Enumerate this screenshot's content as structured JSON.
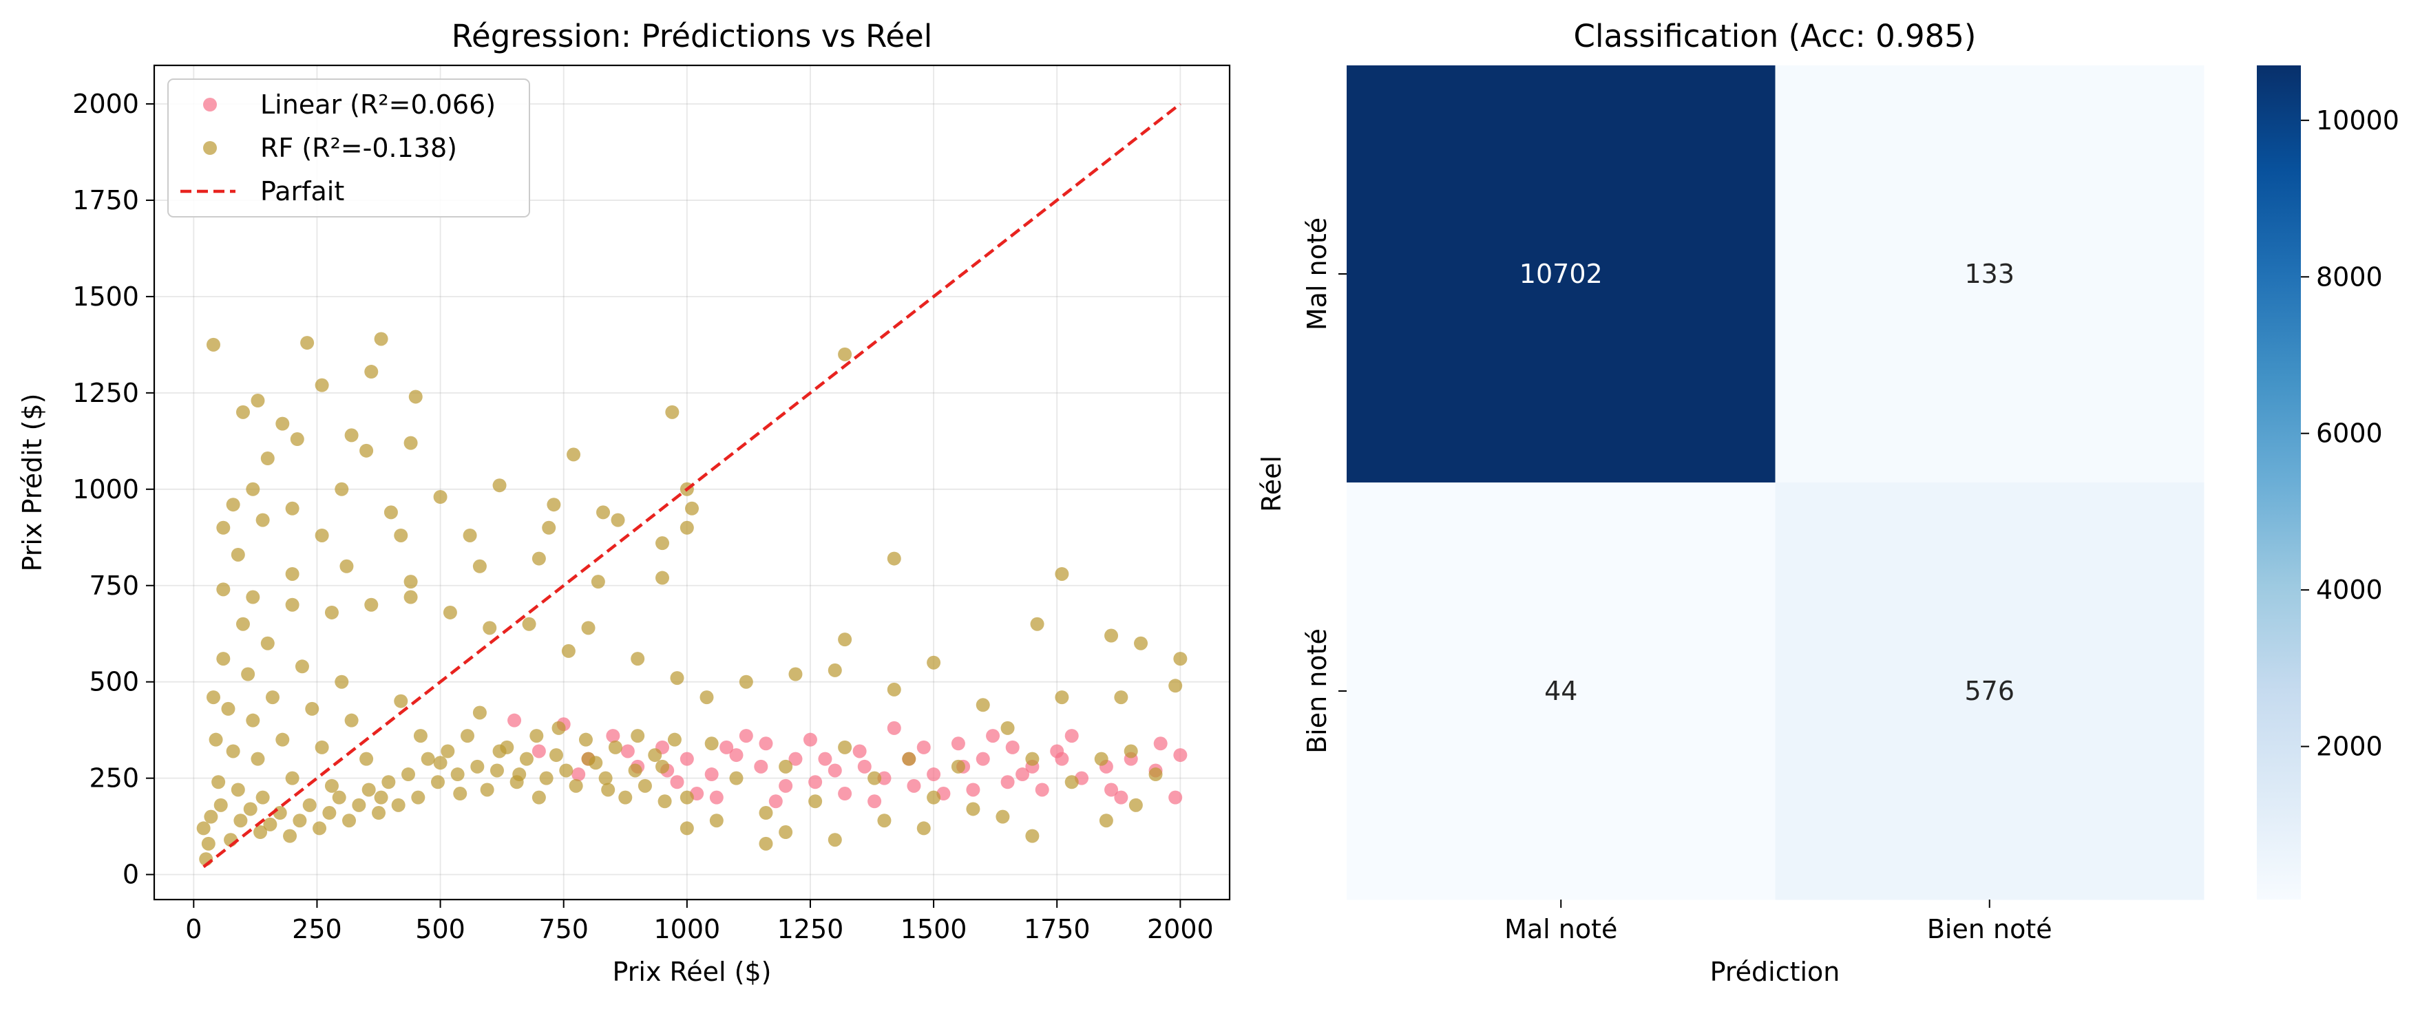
{
  "chart_data": [
    {
      "type": "scatter",
      "title": "Régression: Prédictions vs Réel",
      "xlabel": "Prix Réel ($)",
      "ylabel": "Prix Prédit ($)",
      "xlim": [
        -80,
        2100
      ],
      "ylim": [
        -65,
        2100
      ],
      "xticks": [
        0,
        250,
        500,
        750,
        1000,
        1250,
        1500,
        1750,
        2000
      ],
      "yticks": [
        0,
        250,
        500,
        750,
        1000,
        1250,
        1500,
        1750,
        2000
      ],
      "grid": true,
      "legend_position": "top-left",
      "series": [
        {
          "name": "Linear (R²=0.066)",
          "kind": "scatter",
          "color": "#f77189",
          "points": [
            [
              1850,
              280
            ],
            [
              1900,
              300
            ],
            [
              1950,
              270
            ],
            [
              2000,
              310
            ],
            [
              1990,
              200
            ],
            [
              1800,
              250
            ],
            [
              1750,
              320
            ],
            [
              1700,
              280
            ],
            [
              1650,
              240
            ],
            [
              1600,
              300
            ],
            [
              1550,
              340
            ],
            [
              1500,
              260
            ],
            [
              1450,
              300
            ],
            [
              1400,
              250
            ],
            [
              1350,
              320
            ],
            [
              1300,
              270
            ],
            [
              1250,
              350
            ],
            [
              1200,
              230
            ],
            [
              1150,
              280
            ],
            [
              1100,
              310
            ],
            [
              1050,
              260
            ],
            [
              1000,
              300
            ],
            [
              950,
              330
            ],
            [
              900,
              280
            ],
            [
              850,
              360
            ],
            [
              800,
              300
            ],
            [
              750,
              390
            ],
            [
              700,
              320
            ],
            [
              650,
              400
            ],
            [
              1720,
              220
            ],
            [
              1620,
              360
            ],
            [
              1520,
              210
            ],
            [
              1420,
              380
            ],
            [
              1320,
              210
            ],
            [
              1220,
              300
            ],
            [
              1120,
              360
            ],
            [
              1020,
              210
            ],
            [
              1880,
              200
            ],
            [
              1780,
              360
            ],
            [
              1680,
              260
            ],
            [
              1580,
              220
            ],
            [
              1480,
              330
            ],
            [
              1380,
              190
            ],
            [
              1280,
              300
            ],
            [
              1180,
              190
            ],
            [
              1080,
              330
            ],
            [
              980,
              240
            ],
            [
              880,
              320
            ],
            [
              780,
              260
            ],
            [
              1960,
              340
            ],
            [
              1860,
              220
            ],
            [
              1760,
              300
            ],
            [
              1660,
              330
            ],
            [
              1560,
              280
            ],
            [
              1460,
              230
            ],
            [
              1360,
              280
            ],
            [
              1260,
              240
            ],
            [
              1160,
              340
            ],
            [
              1060,
              200
            ],
            [
              960,
              270
            ]
          ]
        },
        {
          "name": "RF (R²=-0.138)",
          "kind": "scatter",
          "color": "#bb9832",
          "points": [
            [
              40,
              1375
            ],
            [
              230,
              1380
            ],
            [
              380,
              1390
            ],
            [
              260,
              1270
            ],
            [
              360,
              1305
            ],
            [
              1320,
              1350
            ],
            [
              970,
              1200
            ],
            [
              100,
              1200
            ],
            [
              130,
              1230
            ],
            [
              180,
              1170
            ],
            [
              450,
              1240
            ],
            [
              150,
              1080
            ],
            [
              210,
              1130
            ],
            [
              320,
              1140
            ],
            [
              350,
              1100
            ],
            [
              440,
              1120
            ],
            [
              770,
              1090
            ],
            [
              80,
              960
            ],
            [
              120,
              1000
            ],
            [
              200,
              950
            ],
            [
              300,
              1000
            ],
            [
              400,
              940
            ],
            [
              500,
              980
            ],
            [
              620,
              1010
            ],
            [
              730,
              960
            ],
            [
              1000,
              1000
            ],
            [
              1010,
              950
            ],
            [
              830,
              940
            ],
            [
              60,
              900
            ],
            [
              140,
              920
            ],
            [
              260,
              880
            ],
            [
              420,
              880
            ],
            [
              560,
              880
            ],
            [
              720,
              900
            ],
            [
              860,
              920
            ],
            [
              950,
              860
            ],
            [
              1000,
              900
            ],
            [
              90,
              830
            ],
            [
              200,
              780
            ],
            [
              310,
              800
            ],
            [
              440,
              760
            ],
            [
              580,
              800
            ],
            [
              700,
              820
            ],
            [
              820,
              760
            ],
            [
              950,
              770
            ],
            [
              1420,
              820
            ],
            [
              1760,
              780
            ],
            [
              1710,
              650
            ],
            [
              1860,
              620
            ],
            [
              1920,
              600
            ],
            [
              1320,
              610
            ],
            [
              1500,
              550
            ],
            [
              2000,
              560
            ],
            [
              1990,
              490
            ],
            [
              1880,
              460
            ],
            [
              1760,
              460
            ],
            [
              1600,
              440
            ],
            [
              1420,
              480
            ],
            [
              1300,
              530
            ],
            [
              1220,
              520
            ],
            [
              1120,
              500
            ],
            [
              1040,
              460
            ],
            [
              980,
              510
            ],
            [
              900,
              560
            ],
            [
              800,
              640
            ],
            [
              760,
              580
            ],
            [
              680,
              650
            ],
            [
              600,
              640
            ],
            [
              520,
              680
            ],
            [
              440,
              720
            ],
            [
              360,
              700
            ],
            [
              280,
              680
            ],
            [
              200,
              700
            ],
            [
              120,
              720
            ],
            [
              60,
              740
            ],
            [
              1950,
              260
            ],
            [
              1900,
              320
            ],
            [
              1840,
              300
            ],
            [
              1780,
              240
            ],
            [
              1700,
              300
            ],
            [
              1650,
              380
            ],
            [
              1550,
              280
            ],
            [
              1500,
              200
            ],
            [
              1450,
              300
            ],
            [
              1380,
              250
            ],
            [
              1320,
              330
            ],
            [
              1260,
              190
            ],
            [
              1200,
              280
            ],
            [
              1160,
              160
            ],
            [
              1100,
              250
            ],
            [
              1050,
              340
            ],
            [
              1000,
              200
            ],
            [
              950,
              280
            ],
            [
              900,
              360
            ],
            [
              840,
              220
            ],
            [
              800,
              300
            ],
            [
              740,
              380
            ],
            [
              700,
              200
            ],
            [
              660,
              260
            ],
            [
              620,
              320
            ],
            [
              580,
              420
            ],
            [
              540,
              210
            ],
            [
              500,
              290
            ],
            [
              460,
              360
            ],
            [
              420,
              450
            ],
            [
              380,
              200
            ],
            [
              350,
              300
            ],
            [
              320,
              400
            ],
            [
              300,
              500
            ],
            [
              280,
              230
            ],
            [
              260,
              330
            ],
            [
              240,
              430
            ],
            [
              220,
              540
            ],
            [
              200,
              250
            ],
            [
              180,
              350
            ],
            [
              160,
              460
            ],
            [
              150,
              600
            ],
            [
              140,
              200
            ],
            [
              130,
              300
            ],
            [
              120,
              400
            ],
            [
              110,
              520
            ],
            [
              100,
              650
            ],
            [
              90,
              220
            ],
            [
              80,
              320
            ],
            [
              70,
              430
            ],
            [
              60,
              560
            ],
            [
              50,
              240
            ],
            [
              45,
              350
            ],
            [
              40,
              460
            ],
            [
              35,
              150
            ],
            [
              30,
              80
            ],
            [
              25,
              40
            ],
            [
              20,
              120
            ],
            [
              55,
              180
            ],
            [
              75,
              90
            ],
            [
              95,
              140
            ],
            [
              115,
              170
            ],
            [
              135,
              110
            ],
            [
              155,
              130
            ],
            [
              175,
              160
            ],
            [
              195,
              100
            ],
            [
              215,
              140
            ],
            [
              235,
              180
            ],
            [
              255,
              120
            ],
            [
              275,
              160
            ],
            [
              295,
              200
            ],
            [
              315,
              140
            ],
            [
              335,
              180
            ],
            [
              355,
              220
            ],
            [
              375,
              160
            ],
            [
              395,
              240
            ],
            [
              415,
              180
            ],
            [
              435,
              260
            ],
            [
              455,
              200
            ],
            [
              475,
              300
            ],
            [
              495,
              240
            ],
            [
              515,
              320
            ],
            [
              535,
              260
            ],
            [
              555,
              360
            ],
            [
              575,
              280
            ],
            [
              595,
              220
            ],
            [
              615,
              270
            ],
            [
              635,
              330
            ],
            [
              655,
              240
            ],
            [
              675,
              300
            ],
            [
              695,
              360
            ],
            [
              715,
              250
            ],
            [
              735,
              310
            ],
            [
              755,
              270
            ],
            [
              775,
              230
            ],
            [
              795,
              350
            ],
            [
              815,
              290
            ],
            [
              835,
              250
            ],
            [
              855,
              330
            ],
            [
              875,
              200
            ],
            [
              895,
              270
            ],
            [
              915,
              230
            ],
            [
              935,
              310
            ],
            [
              955,
              190
            ],
            [
              975,
              350
            ],
            [
              1910,
              180
            ],
            [
              1850,
              140
            ],
            [
              1700,
              100
            ],
            [
              1640,
              150
            ],
            [
              1580,
              170
            ],
            [
              1480,
              120
            ],
            [
              1400,
              140
            ],
            [
              1300,
              90
            ],
            [
              1200,
              110
            ],
            [
              1160,
              80
            ],
            [
              1060,
              140
            ],
            [
              1000,
              120
            ]
          ]
        },
        {
          "name": "Parfait",
          "kind": "line",
          "color": "#e8231f",
          "dash": true,
          "points": [
            [
              20,
              20
            ],
            [
              2000,
              2000
            ]
          ]
        }
      ]
    },
    {
      "type": "heatmap",
      "title": "Classification (Acc: 0.985)",
      "xlabel": "Prédiction",
      "ylabel": "Réel",
      "x_categories": [
        "Mal noté",
        "Bien noté"
      ],
      "y_categories": [
        "Mal noté",
        "Bien noté"
      ],
      "cells": [
        [
          10702,
          133
        ],
        [
          44,
          576
        ]
      ],
      "cmap": "Blues",
      "colorbar": {
        "min": 44,
        "max": 10702,
        "ticks": [
          2000,
          4000,
          6000,
          8000,
          10000
        ],
        "colors": [
          "#f7fbff",
          "#deebf7",
          "#c6dbef",
          "#9ecae1",
          "#6baed6",
          "#4292c6",
          "#2171b5",
          "#08519c",
          "#08306b"
        ]
      }
    }
  ]
}
